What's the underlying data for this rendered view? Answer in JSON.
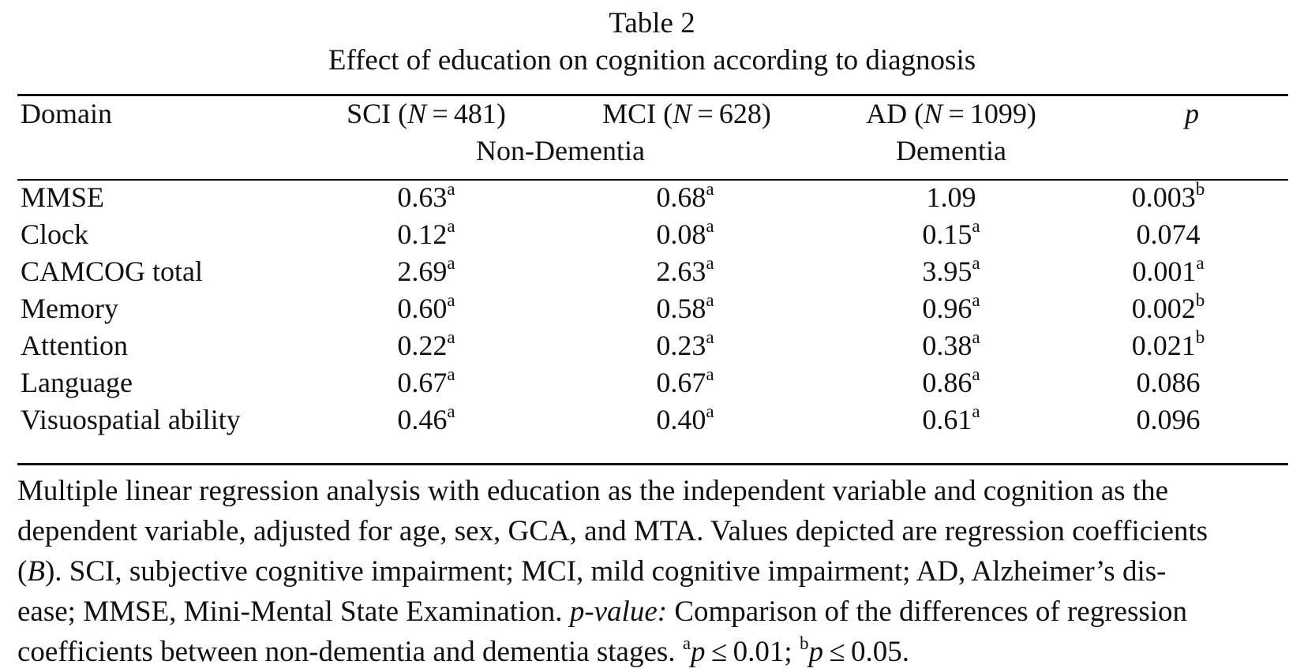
{
  "table": {
    "label": "Table 2",
    "title": "Effect of education on cognition according to diagnosis",
    "columns": {
      "domain": "Domain",
      "sci_prefix": "SCI (",
      "sci_n_var": "N",
      "sci_suffix": " = 481)",
      "mci_prefix": "MCI (",
      "mci_n_var": "N",
      "mci_suffix": " = 628)",
      "ad_prefix": "AD (",
      "ad_n_var": "N",
      "ad_suffix": " = 1099)",
      "p": "p"
    },
    "groups": {
      "non_dementia": "Non-Dementia",
      "dementia": "Dementia"
    },
    "rows": [
      {
        "domain": "MMSE",
        "sci": "0.63",
        "sci_sup": "a",
        "mci": "0.68",
        "mci_sup": "a",
        "ad": "1.09",
        "ad_sup": "",
        "p": "0.003",
        "p_sup": "b"
      },
      {
        "domain": "Clock",
        "sci": "0.12",
        "sci_sup": "a",
        "mci": "0.08",
        "mci_sup": "a",
        "ad": "0.15",
        "ad_sup": "a",
        "p": "0.074",
        "p_sup": ""
      },
      {
        "domain": "CAMCOG total",
        "sci": "2.69",
        "sci_sup": "a",
        "mci": "2.63",
        "mci_sup": "a",
        "ad": "3.95",
        "ad_sup": "a",
        "p": "0.001",
        "p_sup": "a"
      },
      {
        "domain": "Memory",
        "sci": "0.60",
        "sci_sup": "a",
        "mci": "0.58",
        "mci_sup": "a",
        "ad": "0.96",
        "ad_sup": "a",
        "p": "0.002",
        "p_sup": "b"
      },
      {
        "domain": "Attention",
        "sci": "0.22",
        "sci_sup": "a",
        "mci": "0.23",
        "mci_sup": "a",
        "ad": "0.38",
        "ad_sup": "a",
        "p": "0.021",
        "p_sup": "b"
      },
      {
        "domain": "Language",
        "sci": "0.67",
        "sci_sup": "a",
        "mci": "0.67",
        "mci_sup": "a",
        "ad": "0.86",
        "ad_sup": "a",
        "p": "0.086",
        "p_sup": ""
      },
      {
        "domain": "Visuospatial ability",
        "sci": "0.46",
        "sci_sup": "a",
        "mci": "0.40",
        "mci_sup": "a",
        "ad": "0.61",
        "ad_sup": "a",
        "p": "0.096",
        "p_sup": ""
      }
    ]
  },
  "notes": {
    "line1": "Multiple linear regression analysis with education as the independent variable and cognition as the",
    "line2": "dependent variable, adjusted for age, sex, GCA, and MTA. Values depicted are regression coefficients",
    "line3_a": "(",
    "line3_b_italic": "B",
    "line3_c": "). SCI, subjective cognitive impairment; MCI, mild cognitive impairment; AD, Alzheimer’s dis-",
    "line4_a": "ease; MMSE, Mini-Mental State Examination. ",
    "line4_b_italic": "p-value:",
    "line4_c": " Comparison of the differences of regression",
    "line5_a": "coefficients between non-dementia and dementia stages. ",
    "line5_sup_a": "a",
    "line5_p1": "p",
    "line5_t1": " ≤ 0.01; ",
    "line5_sup_b": "b",
    "line5_p2": "p",
    "line5_t2": " ≤ 0.05."
  }
}
